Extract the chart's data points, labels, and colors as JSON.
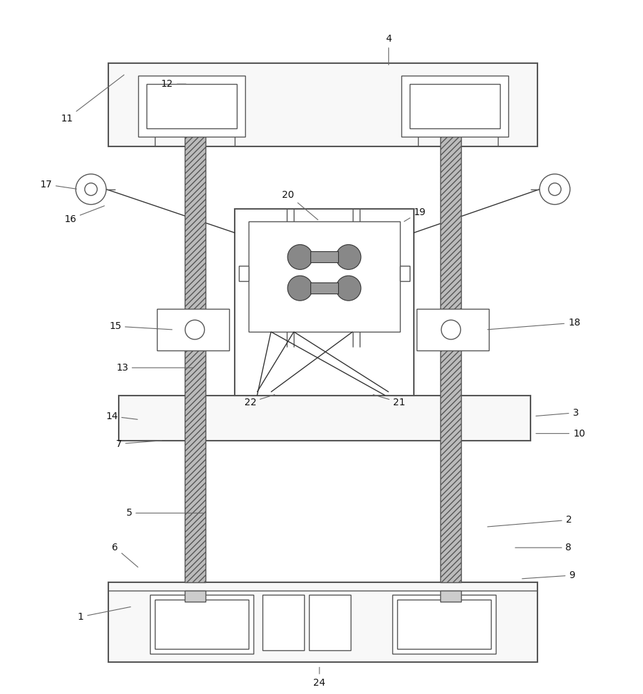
{
  "bg_color": "#ffffff",
  "lc": "#555555",
  "lc_dark": "#333333",
  "hatch_fc": "#aaaaaa",
  "fig_width": 9.26,
  "fig_height": 10.0
}
